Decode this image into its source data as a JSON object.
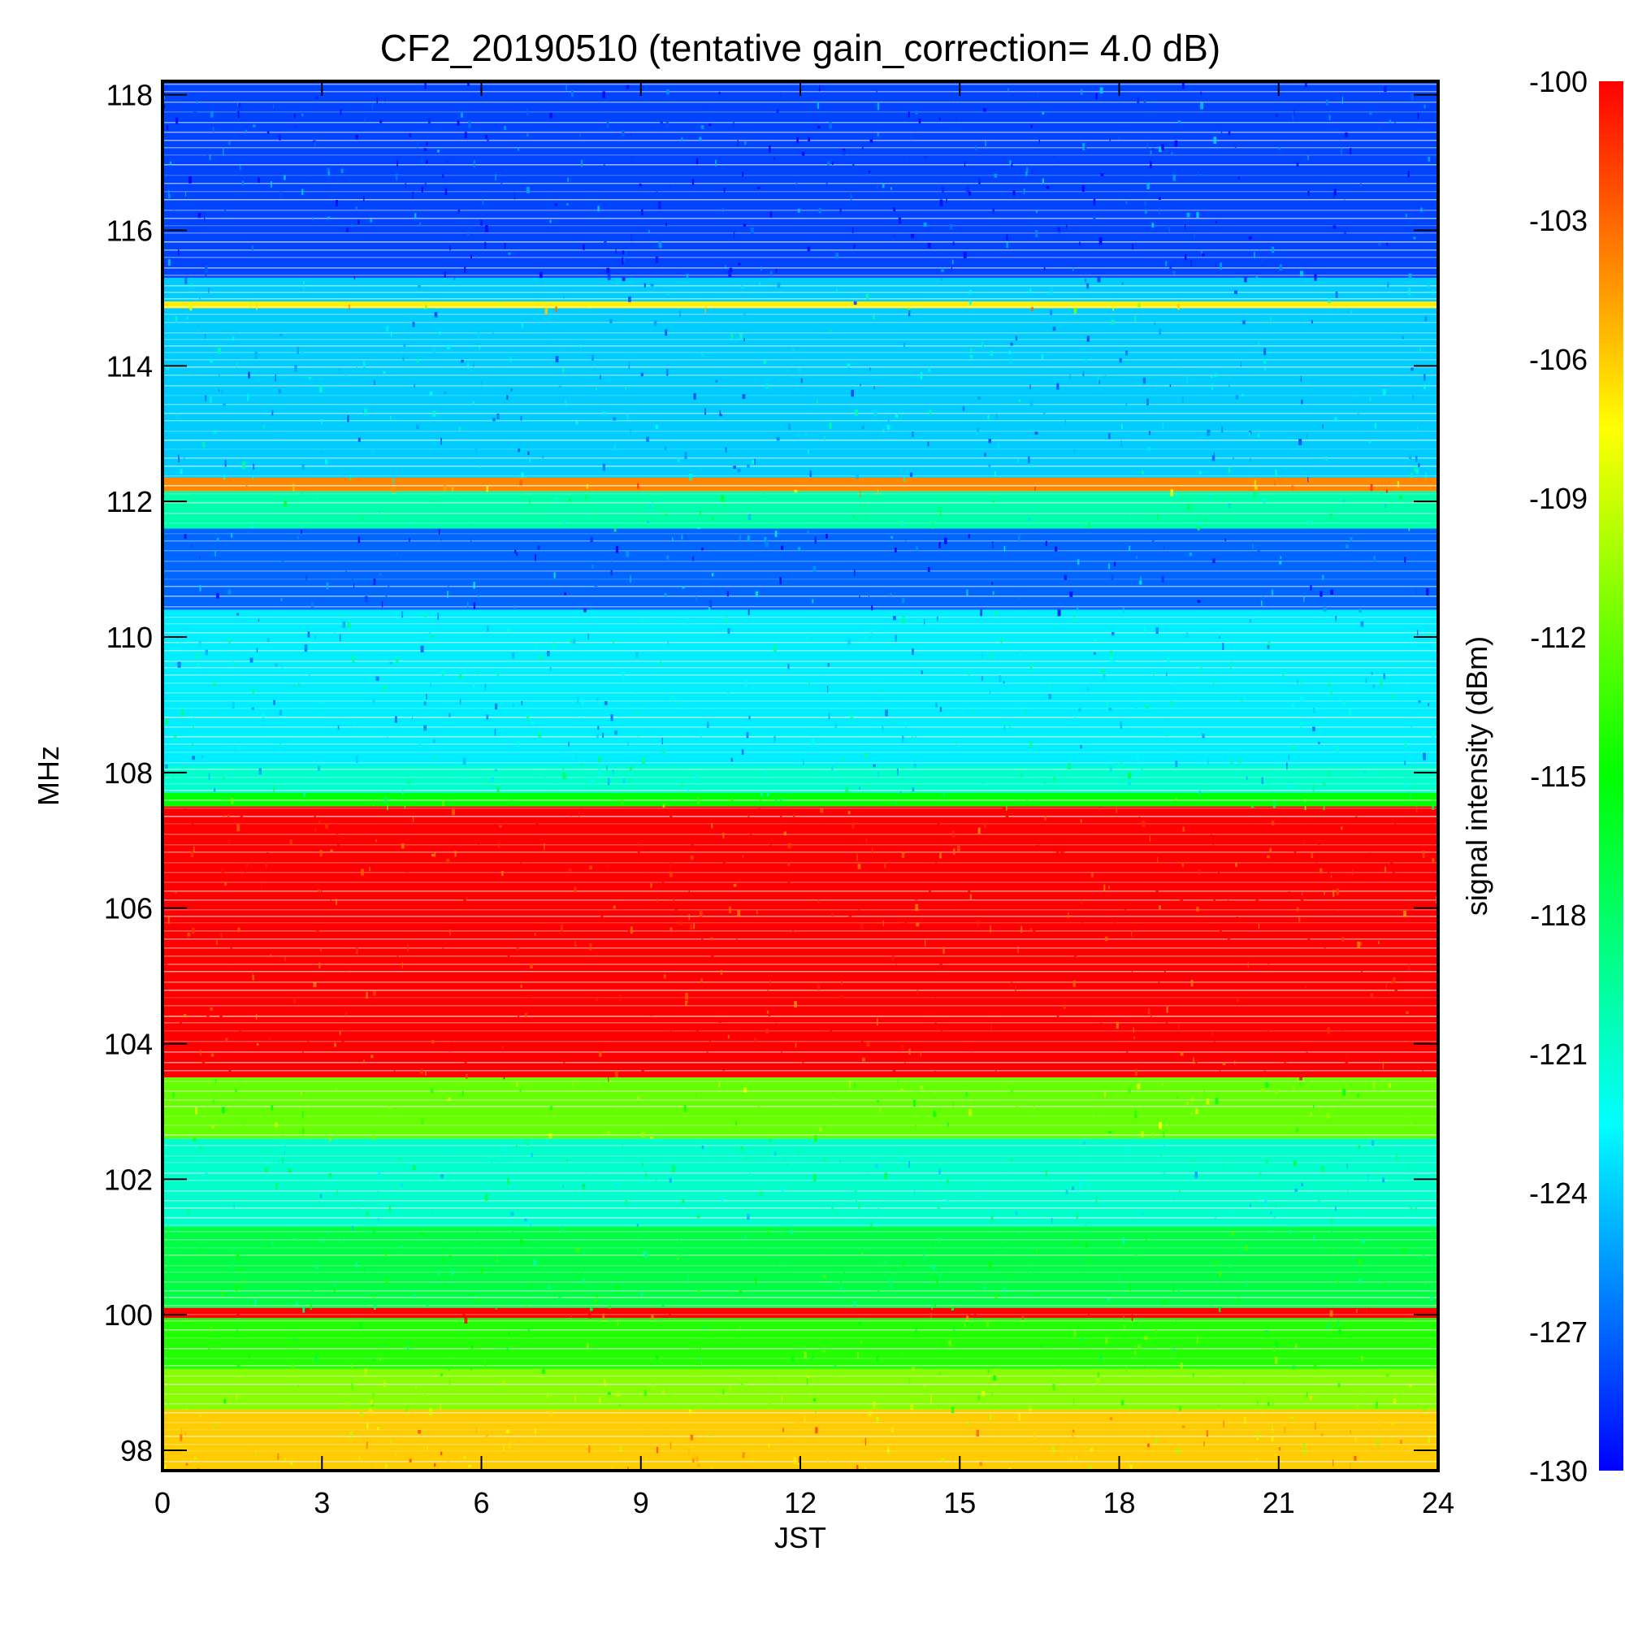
{
  "chart_data": {
    "type": "heatmap",
    "title": "CF2_20190510 (tentative gain_correction=  4.0 dB)",
    "xlabel": "JST",
    "ylabel": "MHz",
    "colorbar_label": "signal intensity (dBm)",
    "xlim": [
      0,
      24
    ],
    "ylim": [
      97.7,
      118.2
    ],
    "x_ticks": [
      0,
      3,
      6,
      9,
      12,
      15,
      18,
      21,
      24
    ],
    "y_ticks": [
      98,
      100,
      102,
      104,
      106,
      108,
      110,
      112,
      114,
      116,
      118
    ],
    "color_range": [
      -130,
      -100
    ],
    "colorbar_ticks": [
      -100,
      -103,
      -106,
      -109,
      -112,
      -115,
      -118,
      -121,
      -124,
      -127,
      -130
    ],
    "colormap": [
      "#0000ff",
      "#0080ff",
      "#00ffff",
      "#00ff80",
      "#00ff00",
      "#80ff00",
      "#ffff00",
      "#ff8000",
      "#ff0000"
    ],
    "bands": [
      {
        "from": 115.3,
        "to": 118.2,
        "dBm": -128
      },
      {
        "from": 114.95,
        "to": 115.3,
        "dBm": -124
      },
      {
        "from": 114.85,
        "to": 114.95,
        "dBm": -107
      },
      {
        "from": 112.35,
        "to": 114.85,
        "dBm": -124
      },
      {
        "from": 112.15,
        "to": 112.35,
        "dBm": -104
      },
      {
        "from": 111.6,
        "to": 112.15,
        "dBm": -120
      },
      {
        "from": 110.4,
        "to": 111.6,
        "dBm": -127
      },
      {
        "from": 108.1,
        "to": 110.4,
        "dBm": -123
      },
      {
        "from": 107.7,
        "to": 108.1,
        "dBm": -121
      },
      {
        "from": 107.5,
        "to": 107.7,
        "dBm": -115
      },
      {
        "from": 103.5,
        "to": 107.5,
        "dBm": -100
      },
      {
        "from": 102.6,
        "to": 103.5,
        "dBm": -112
      },
      {
        "from": 101.3,
        "to": 102.6,
        "dBm": -121
      },
      {
        "from": 100.1,
        "to": 101.3,
        "dBm": -117
      },
      {
        "from": 99.95,
        "to": 100.1,
        "dBm": -100
      },
      {
        "from": 99.2,
        "to": 99.95,
        "dBm": -114
      },
      {
        "from": 98.6,
        "to": 99.2,
        "dBm": -111
      },
      {
        "from": 97.7,
        "to": 98.6,
        "dBm": -106
      }
    ],
    "grid": false
  }
}
